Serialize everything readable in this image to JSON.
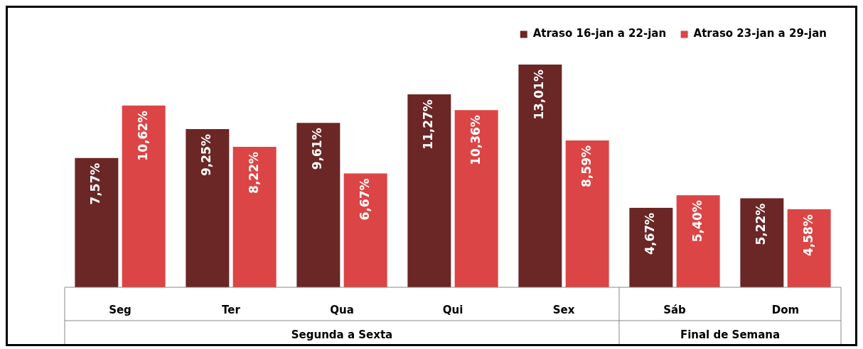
{
  "chart_data": {
    "type": "bar",
    "categories": [
      "Seg",
      "Ter",
      "Qua",
      "Qui",
      "Sex",
      "Sáb",
      "Dom"
    ],
    "series": [
      {
        "name": "Atraso 16-jan a 22-jan",
        "color": "#6b2626",
        "values": [
          7.57,
          9.25,
          9.61,
          11.27,
          13.01,
          4.67,
          5.22
        ],
        "value_labels": [
          "7,57%",
          "9,25%",
          "9,61%",
          "11,27%",
          "13,01%",
          "4,67%",
          "5,22%"
        ]
      },
      {
        "name": "Atraso 23-jan a 29-jan",
        "color": "#dc4545",
        "values": [
          10.62,
          8.22,
          6.67,
          10.36,
          8.59,
          5.4,
          4.58
        ],
        "value_labels": [
          "10,62%",
          "8,22%",
          "6,67%",
          "10,36%",
          "8,59%",
          "5,40%",
          "4,58%"
        ]
      }
    ],
    "annotations": [
      "Segunda a Sexta",
      "Final de Semana"
    ],
    "legend": "top right"
  }
}
